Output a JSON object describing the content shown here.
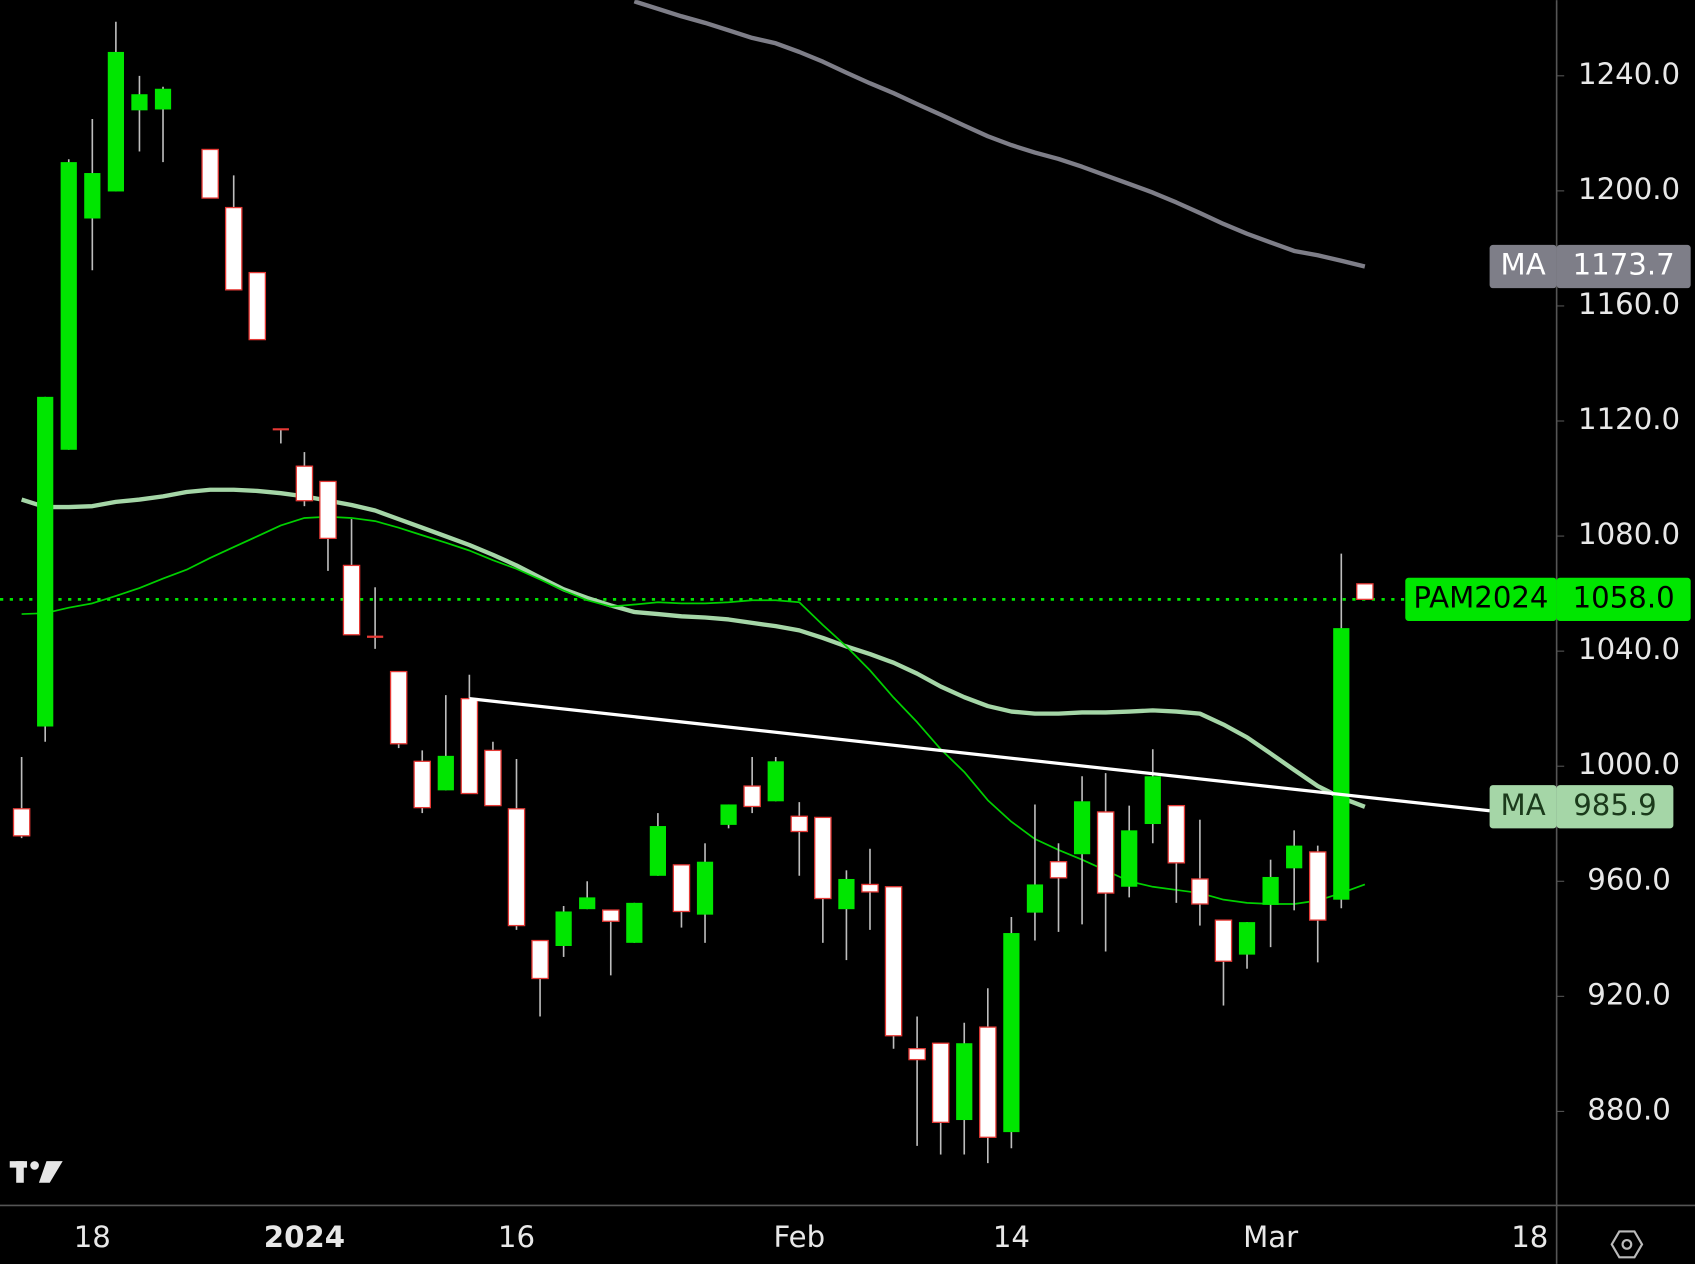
{
  "chart_data": {
    "type": "candlestick",
    "symbol": "PAM2024",
    "last_price_label": "1058.0",
    "categories": [
      null,
      null,
      null,
      "18",
      null,
      null,
      null,
      null,
      null,
      null,
      null,
      null,
      "2024",
      null,
      null,
      null,
      null,
      null,
      null,
      null,
      null,
      "16",
      null,
      null,
      null,
      null,
      null,
      null,
      null,
      null,
      null,
      null,
      null,
      "Feb",
      null,
      null,
      null,
      null,
      null,
      null,
      null,
      null,
      "14",
      null,
      null,
      null,
      null,
      null,
      null,
      null,
      null,
      null,
      null,
      "Mar",
      null,
      null,
      null,
      null,
      null,
      null,
      null,
      null,
      null,
      null,
      "18",
      null
    ],
    "open": [
      985.2,
      1013.8,
      1110,
      1190.4,
      1199.8,
      1228,
      1228.3,
      null,
      1214.4,
      1194.2,
      1171.6,
      1117.1,
      1104.3,
      1099,
      1069.8,
      1045,
      1032.9,
      1001.7,
      991.6,
      1023.5,
      1005.5,
      985.2,
      939.4,
      937.5,
      950.3,
      950,
      938.6,
      961.9,
      965.7,
      948.4,
      979.6,
      993.1,
      987.8,
      982.6,
      982.2,
      950.3,
      958.9,
      958.1,
      901.8,
      903.7,
      877,
      909.3,
      872.8,
      949.1,
      966.8,
      969.4,
      984.1,
      958.1,
      979.9,
      986.3,
      960.8,
      946.5,
      934.5,
      951.8,
      964.5,
      970.2,
      953.6,
      1063.4,
      null,
      null,
      null,
      null,
      null,
      null,
      null,
      null
    ],
    "high": [
      1003.2,
      1128.4,
      1211,
      1225,
      1258.8,
      1240,
      1236.2,
      null,
      1214.4,
      1205.4,
      1171.6,
      1117.1,
      1109.2,
      1099,
      1085.9,
      1062.2,
      1032.9,
      1005.5,
      1024.7,
      1031.8,
      1008.5,
      1002.5,
      939.4,
      951.4,
      960,
      950,
      952.5,
      983.7,
      965.7,
      973.2,
      986.7,
      1003.2,
      1003.2,
      987.5,
      982.2,
      963.8,
      971.3,
      958.1,
      913,
      903.7,
      910.8,
      922.8,
      947.6,
      986.7,
      973.2,
      996.5,
      997.6,
      986.3,
      1005.9,
      986.3,
      981.4,
      946.5,
      945.8,
      967.5,
      977.7,
      972.4,
      1073.9,
      1063.4,
      null,
      null,
      null,
      null,
      null,
      null,
      null,
      null
    ],
    "low": [
      975,
      1008.5,
      1110,
      1172.4,
      1199.8,
      1213.7,
      1210,
      null,
      1197.5,
      1165.6,
      1148.3,
      1112.2,
      1090.4,
      1067.9,
      1045.7,
      1040.8,
      1006.3,
      983.7,
      991.6,
      990.5,
      986.3,
      943.1,
      913,
      933.7,
      950.3,
      927.3,
      938.6,
      961.9,
      943.9,
      938.6,
      978.4,
      983.7,
      987.8,
      961.9,
      938.6,
      932.6,
      943.1,
      901.8,
      868,
      865,
      865,
      862,
      867.2,
      939.4,
      942.4,
      945,
      935.6,
      954.4,
      973.2,
      952.5,
      944.6,
      916.8,
      929.6,
      937.1,
      949.9,
      931.8,
      950.6,
      1058,
      null,
      null,
      null,
      null,
      null,
      null,
      null,
      null
    ],
    "close": [
      975.8,
      1128.4,
      1210,
      1206.2,
      1248.3,
      1233.6,
      1235.5,
      null,
      1197.5,
      1165.6,
      1148.3,
      1117.1,
      1092.3,
      1079.2,
      1045.7,
      1045,
      1007.8,
      985.6,
      1003.6,
      990.5,
      986.3,
      944.6,
      926.2,
      949.5,
      954.4,
      946.1,
      952.5,
      979.2,
      949.5,
      966.8,
      986.7,
      986,
      1001.7,
      977.3,
      954,
      960.8,
      956.3,
      906.3,
      898,
      876.2,
      903.7,
      871,
      942,
      958.9,
      961.2,
      987.8,
      955.9,
      977.7,
      996.5,
      966.4,
      952.1,
      932.2,
      945.8,
      961.5,
      972.4,
      946.5,
      1048,
      1058,
      null,
      null,
      null,
      null,
      null,
      null,
      null,
      null
    ],
    "up_color": "#00e600",
    "down_color": "#ffffff",
    "down_edge_color": "#e53935",
    "series": [
      {
        "name": "MA",
        "color": "#7e7e88",
        "values": [
          null,
          null,
          null,
          null,
          null,
          null,
          null,
          null,
          null,
          null,
          null,
          null,
          null,
          null,
          null,
          null,
          null,
          null,
          null,
          null,
          null,
          null,
          null,
          null,
          null,
          null,
          1265.9,
          1263.3,
          1260.7,
          1258.4,
          1255.8,
          1253.2,
          1251.3,
          1248.3,
          1244.9,
          1241.1,
          1237.4,
          1234,
          1230.2,
          1226.5,
          1222.7,
          1219,
          1215.9,
          1213.3,
          1211.1,
          1208.4,
          1205.4,
          1202.4,
          1199.4,
          1196,
          1192.3,
          1188.5,
          1185.1,
          1182.1,
          1179.1,
          1177.6,
          1175.7,
          1173.7,
          null,
          null,
          null,
          null,
          null,
          null,
          null,
          null
        ]
      },
      {
        "name": "MA",
        "color": "#a5d6a7",
        "values": [
          1092.7,
          1090.1,
          1090.1,
          1090.4,
          1091.9,
          1092.7,
          1093.8,
          1095.3,
          1096.1,
          1096.1,
          1095.7,
          1094.9,
          1093.8,
          1092.3,
          1090.8,
          1088.9,
          1085.9,
          1082.9,
          1079.9,
          1076.9,
          1073.5,
          1069.8,
          1065.6,
          1061.5,
          1058.5,
          1055.9,
          1053.6,
          1052.9,
          1052.1,
          1051.7,
          1051,
          1049.8,
          1048.7,
          1047.2,
          1044.6,
          1041.6,
          1039,
          1036,
          1032.2,
          1027.7,
          1024,
          1020.9,
          1019,
          1018.3,
          1018.3,
          1018.7,
          1018.7,
          1019,
          1019.4,
          1019,
          1018.3,
          1014.5,
          1010,
          1004.4,
          998.7,
          993.1,
          989,
          985.9,
          null,
          null,
          null,
          null,
          null,
          null,
          null,
          null
        ]
      },
      {
        "color": "#00d000",
        "values": [
          1052.9,
          1053.2,
          1055.1,
          1056.6,
          1059.2,
          1061.9,
          1065.2,
          1068.3,
          1072.4,
          1076.2,
          1079.9,
          1083.7,
          1086.3,
          1086.7,
          1086.3,
          1085.2,
          1082.9,
          1080.3,
          1077.7,
          1075,
          1071.6,
          1068.6,
          1064.9,
          1061.1,
          1057.7,
          1055.5,
          1056.2,
          1057,
          1056.6,
          1056.6,
          1057,
          1057.7,
          1057.7,
          1057,
          1049.1,
          1041.6,
          1033.3,
          1023.9,
          1015.3,
          1005.9,
          998,
          988.2,
          980.7,
          974.7,
          970.9,
          967.5,
          963.8,
          960,
          958.1,
          957,
          955.9,
          953.6,
          952.5,
          952.1,
          952.1,
          953.3,
          955.9,
          958.9,
          null,
          null,
          null,
          null,
          null,
          null,
          null,
          null
        ]
      }
    ],
    "trend_line": [
      1023.5,
      984.5
    ],
    "ylim": [
      847.3,
      1266.3
    ],
    "yticks": [
      {
        "value": 880,
        "label": "880.0"
      },
      {
        "value": 920,
        "label": "920.0"
      },
      {
        "value": 960,
        "label": "960.0"
      },
      {
        "value": 1000,
        "label": "1000.0"
      },
      {
        "value": 1040,
        "label": "1040.0"
      },
      {
        "value": 1080,
        "label": "1080.0"
      },
      {
        "value": 1120,
        "label": "1120.0"
      },
      {
        "value": 1160,
        "label": "1160.0"
      },
      {
        "value": 1200,
        "label": "1200.0"
      },
      {
        "value": 1240,
        "label": "1240.0"
      }
    ],
    "grid": false
  }
}
